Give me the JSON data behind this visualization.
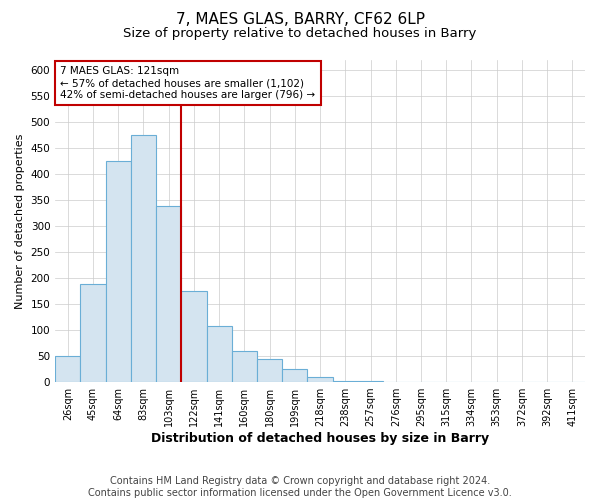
{
  "title": "7, MAES GLAS, BARRY, CF62 6LP",
  "subtitle": "Size of property relative to detached houses in Barry",
  "xlabel": "Distribution of detached houses by size in Barry",
  "ylabel": "Number of detached properties",
  "categories": [
    "26sqm",
    "45sqm",
    "64sqm",
    "83sqm",
    "103sqm",
    "122sqm",
    "141sqm",
    "160sqm",
    "180sqm",
    "199sqm",
    "218sqm",
    "238sqm",
    "257sqm",
    "276sqm",
    "295sqm",
    "315sqm",
    "334sqm",
    "353sqm",
    "372sqm",
    "392sqm",
    "411sqm"
  ],
  "values": [
    50,
    188,
    425,
    475,
    338,
    175,
    108,
    60,
    44,
    25,
    10,
    3,
    2,
    1,
    1,
    1,
    1,
    1,
    1,
    1,
    1
  ],
  "bar_color": "#d4e4f0",
  "bar_edge_color": "#6aaed6",
  "highlight_line_index": 5,
  "highlight_color": "#c00000",
  "annotation_text": "7 MAES GLAS: 121sqm\n← 57% of detached houses are smaller (1,102)\n42% of semi-detached houses are larger (796) →",
  "annotation_box_color": "#ffffff",
  "annotation_box_edge": "#c00000",
  "ylim": [
    0,
    620
  ],
  "yticks": [
    0,
    50,
    100,
    150,
    200,
    250,
    300,
    350,
    400,
    450,
    500,
    550,
    600
  ],
  "footer": "Contains HM Land Registry data © Crown copyright and database right 2024.\nContains public sector information licensed under the Open Government Licence v3.0.",
  "title_fontsize": 11,
  "subtitle_fontsize": 9.5,
  "xlabel_fontsize": 9,
  "ylabel_fontsize": 8,
  "footer_fontsize": 7,
  "bg_color": "#ffffff",
  "grid_color": "#cccccc"
}
